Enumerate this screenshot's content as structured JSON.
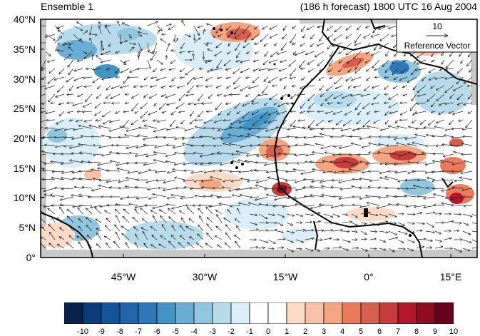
{
  "header": {
    "title_left": "Ensemble 1",
    "title_right": "(186 h forecast) 1800 UTC 16 Aug 2004"
  },
  "map": {
    "y_ticks": [
      "40°N",
      "35°N",
      "30°N",
      "25°N",
      "20°N",
      "15°N",
      "10°N",
      "5°N",
      "0°"
    ],
    "x_ticks": [
      "45°W",
      "30°W",
      "15°W",
      "0°",
      "15°E"
    ],
    "lat_range": [
      0,
      40
    ],
    "lon_range": [
      -57,
      20
    ]
  },
  "reference_vector": {
    "value": "10",
    "label": "Reference Vector"
  },
  "colorbar": {
    "labels": [
      "-10",
      "-9",
      "-8",
      "-7",
      "-6",
      "-5",
      "-4",
      "-3",
      "-2",
      "-1",
      "0",
      "1",
      "2",
      "3",
      "4",
      "5",
      "6",
      "7",
      "8",
      "9",
      "10"
    ],
    "colors": [
      "#08224a",
      "#0c3b79",
      "#15549b",
      "#2166ac",
      "#2f78b8",
      "#4393c3",
      "#6aaed6",
      "#92c5de",
      "#b7dbeb",
      "#d9eef8",
      "#ffffff",
      "#ffffff",
      "#fddbc7",
      "#f9c0a8",
      "#f4a582",
      "#eb7a5c",
      "#d6604d",
      "#c43c3c",
      "#b2182b",
      "#8b0d1f",
      "#67001f"
    ]
  }
}
